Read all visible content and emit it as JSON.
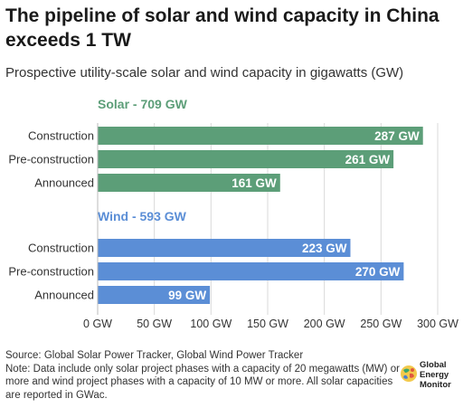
{
  "title": "The pipeline of solar and wind capacity in China exceeds 1 TW",
  "subtitle": "Prospective utility-scale solar and wind capacity in gigawatts (GW)",
  "chart_data": {
    "type": "bar",
    "orientation": "horizontal",
    "unit": "GW",
    "xlim": [
      0,
      300
    ],
    "xticks": [
      0,
      50,
      100,
      150,
      200,
      250,
      300
    ],
    "xtick_labels": [
      "0 GW",
      "50 GW",
      "100 GW",
      "150 GW",
      "200 GW",
      "250 GW",
      "300 GW"
    ],
    "grid": "vertical",
    "groups": [
      {
        "name": "Solar - 709 GW",
        "color": "#5c9e78",
        "categories": [
          "Construction",
          "Pre-construction",
          "Announced"
        ],
        "values": [
          287,
          261,
          161
        ],
        "labels": [
          "287 GW",
          "261 GW",
          "161 GW"
        ]
      },
      {
        "name": "Wind - 593 GW",
        "color": "#5b8ed6",
        "categories": [
          "Construction",
          "Pre-construction",
          "Announced"
        ],
        "values": [
          223,
          270,
          99
        ],
        "labels": [
          "223 GW",
          "270 GW",
          "99 GW"
        ]
      }
    ]
  },
  "footer": {
    "source": "Source: Global Solar Power Tracker, Global Wind Power Tracker",
    "note": "Note: Data include only solar project phases with a capacity of 20 megawatts (MW) or more and wind project phases with a capacity of 10 MW or more. All solar capacities are reported in GWac."
  },
  "logo": {
    "line1": "Global",
    "line2": "Energy",
    "line3": "Monitor"
  }
}
